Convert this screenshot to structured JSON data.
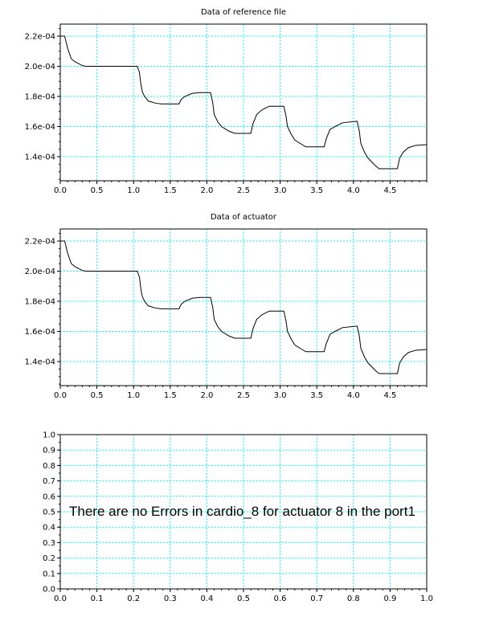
{
  "chart_data": [
    {
      "type": "line",
      "title": "Data of reference file",
      "xlim": [
        0,
        5
      ],
      "ylim": [
        0.000124,
        0.000228
      ],
      "grid": true,
      "xticks": [
        0.0,
        0.5,
        1.0,
        1.5,
        2.0,
        2.5,
        3.0,
        3.5,
        4.0,
        4.5
      ],
      "xtick_labels": [
        "0.0",
        "0.5",
        "1.0",
        "1.5",
        "2.0",
        "2.5",
        "3.0",
        "3.5",
        "4.0",
        "4.5"
      ],
      "yticks": [
        0.00014,
        0.00016,
        0.00018,
        0.0002,
        0.00022
      ],
      "ytick_labels": [
        "1.4e-04",
        "1.6e-04",
        "1.8e-04",
        "2.0e-04",
        "2.2e-04"
      ],
      "series": [
        {
          "x": [
            0.0,
            0.06,
            0.1,
            0.15,
            0.2,
            0.3,
            0.35,
            0.6,
            1.05,
            1.08,
            1.1,
            1.12,
            1.15,
            1.2,
            1.3,
            1.38,
            1.5,
            1.62,
            1.65,
            1.7,
            1.8,
            1.9,
            2.05,
            2.08,
            2.1,
            2.15,
            2.2,
            2.3,
            2.38,
            2.5,
            2.6,
            2.63,
            2.68,
            2.75,
            2.85,
            3.05,
            3.08,
            3.1,
            3.15,
            3.2,
            3.3,
            3.35,
            3.5,
            3.6,
            3.63,
            3.68,
            3.75,
            3.85,
            4.05,
            4.08,
            4.1,
            4.15,
            4.2,
            4.3,
            4.35,
            4.55,
            4.6,
            4.63,
            4.68,
            4.75,
            4.85,
            5.0
          ],
          "y": [
            0.00022,
            0.00022,
            0.000212,
            0.000205,
            0.000203,
            0.0002005,
            0.0002,
            0.0002,
            0.0002,
            0.000196,
            0.000188,
            0.000183,
            0.00018,
            0.000177,
            0.0001755,
            0.000175,
            0.000175,
            0.000175,
            0.000178,
            0.00018,
            0.000182,
            0.0001825,
            0.0001825,
            0.000176,
            0.000168,
            0.000163,
            0.00016,
            0.000157,
            0.0001555,
            0.0001555,
            0.0001555,
            0.000162,
            0.000168,
            0.000171,
            0.0001735,
            0.0001735,
            0.000167,
            0.00016,
            0.000155,
            0.000151,
            0.000148,
            0.0001465,
            0.0001465,
            0.0001465,
            0.000152,
            0.000158,
            0.00016,
            0.0001625,
            0.0001635,
            0.000157,
            0.000149,
            0.000143,
            0.000139,
            0.000134,
            0.000132,
            0.000132,
            0.000132,
            0.000139,
            0.000143,
            0.000146,
            0.0001475,
            0.000148
          ]
        }
      ]
    },
    {
      "type": "line",
      "title": "Data of actuator",
      "xlim": [
        0,
        5
      ],
      "ylim": [
        0.000124,
        0.000228
      ],
      "grid": true,
      "xticks": [
        0.0,
        0.5,
        1.0,
        1.5,
        2.0,
        2.5,
        3.0,
        3.5,
        4.0,
        4.5
      ],
      "xtick_labels": [
        "0.0",
        "0.5",
        "1.0",
        "1.5",
        "2.0",
        "2.5",
        "3.0",
        "3.5",
        "4.0",
        "4.5"
      ],
      "yticks": [
        0.00014,
        0.00016,
        0.00018,
        0.0002,
        0.00022
      ],
      "ytick_labels": [
        "1.4e-04",
        "1.6e-04",
        "1.8e-04",
        "2.0e-04",
        "2.2e-04"
      ],
      "series": [
        {
          "x": [
            0.0,
            0.06,
            0.1,
            0.15,
            0.2,
            0.3,
            0.35,
            0.6,
            1.05,
            1.08,
            1.1,
            1.12,
            1.15,
            1.2,
            1.3,
            1.38,
            1.5,
            1.62,
            1.65,
            1.7,
            1.8,
            1.9,
            2.05,
            2.08,
            2.1,
            2.15,
            2.2,
            2.3,
            2.38,
            2.5,
            2.6,
            2.63,
            2.68,
            2.75,
            2.85,
            3.05,
            3.08,
            3.1,
            3.15,
            3.2,
            3.3,
            3.35,
            3.5,
            3.6,
            3.63,
            3.68,
            3.75,
            3.85,
            4.05,
            4.08,
            4.1,
            4.15,
            4.2,
            4.3,
            4.35,
            4.55,
            4.6,
            4.63,
            4.68,
            4.75,
            4.85,
            5.0
          ],
          "y": [
            0.00022,
            0.00022,
            0.000212,
            0.000205,
            0.000203,
            0.0002005,
            0.0002,
            0.0002,
            0.0002,
            0.000196,
            0.000188,
            0.000183,
            0.00018,
            0.000177,
            0.0001755,
            0.000175,
            0.000175,
            0.000175,
            0.000178,
            0.00018,
            0.000182,
            0.0001825,
            0.0001825,
            0.000176,
            0.000168,
            0.000163,
            0.00016,
            0.000157,
            0.0001555,
            0.0001555,
            0.0001555,
            0.000162,
            0.000168,
            0.000171,
            0.0001735,
            0.0001735,
            0.000167,
            0.00016,
            0.000155,
            0.000151,
            0.000148,
            0.0001465,
            0.0001465,
            0.0001465,
            0.000152,
            0.000158,
            0.00016,
            0.0001625,
            0.0001635,
            0.000157,
            0.000149,
            0.000143,
            0.000139,
            0.000134,
            0.000132,
            0.000132,
            0.000132,
            0.000139,
            0.000143,
            0.000146,
            0.0001475,
            0.000148
          ]
        }
      ]
    },
    {
      "type": "line",
      "title": "",
      "xlim": [
        0,
        1
      ],
      "ylim": [
        0,
        1
      ],
      "grid": true,
      "xticks": [
        0.0,
        0.1,
        0.2,
        0.3,
        0.4,
        0.5,
        0.6,
        0.7,
        0.8,
        0.9,
        1.0
      ],
      "xtick_labels": [
        "0.0",
        "0.1",
        "0.2",
        "0.3",
        "0.4",
        "0.5",
        "0.6",
        "0.7",
        "0.8",
        "0.9",
        "1.0"
      ],
      "yticks": [
        0.0,
        0.1,
        0.2,
        0.3,
        0.4,
        0.5,
        0.6,
        0.7,
        0.8,
        0.9,
        1.0
      ],
      "ytick_labels": [
        "0.0",
        "0.1",
        "0.2",
        "0.3",
        "0.4",
        "0.5",
        "0.6",
        "0.7",
        "0.8",
        "0.9",
        "1.0"
      ],
      "annotation": "There are no Errors in cardio_8 for actuator 8 in the port1",
      "series": []
    }
  ]
}
